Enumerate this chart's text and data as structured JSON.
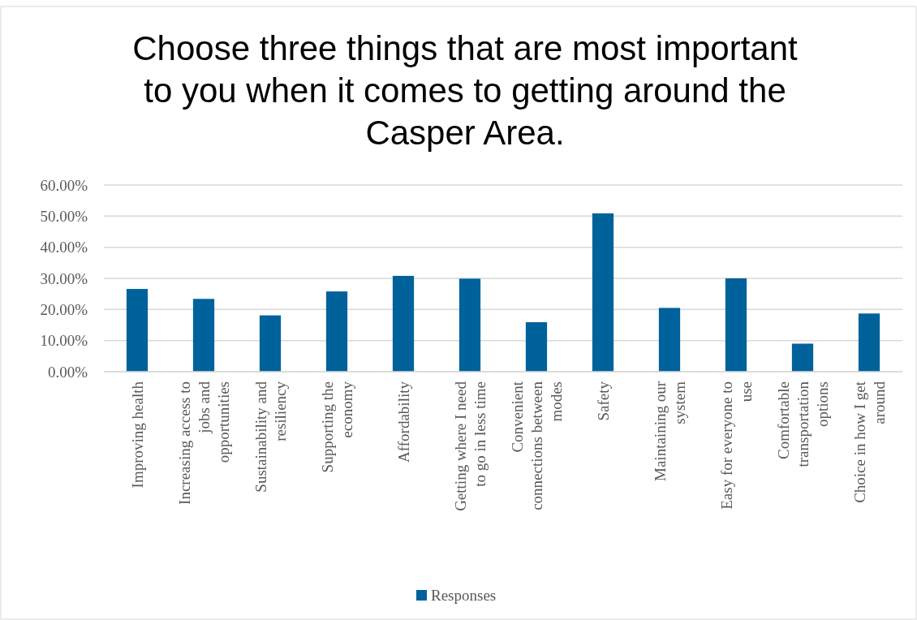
{
  "chart_data": {
    "type": "bar",
    "title": "Choose three things that are most important to you when it comes to getting around the Casper Area.",
    "categories": [
      "Improving health",
      "Increasing access to jobs and opportunities",
      "Sustainability and resiliency",
      "Supporting the economy",
      "Affordability",
      "Getting where I need to go in less time",
      "Convenient connections between modes",
      "Safety",
      "Maintaining our system",
      "Easy for everyone to use",
      "Comfortable transportation options",
      "Choice in how I get around"
    ],
    "series": [
      {
        "name": "Responses",
        "color": "#00629b",
        "values": [
          26.6,
          23.4,
          18.1,
          25.8,
          30.8,
          29.9,
          15.9,
          50.9,
          20.5,
          30.0,
          9.0,
          18.7
        ]
      }
    ],
    "ylim": [
      0,
      60
    ],
    "yticks": [
      {
        "value": 0,
        "label": "0.00%"
      },
      {
        "value": 10,
        "label": "10.00%"
      },
      {
        "value": 20,
        "label": "20.00%"
      },
      {
        "value": 30,
        "label": "30.00%"
      },
      {
        "value": 40,
        "label": "40.00%"
      },
      {
        "value": 50,
        "label": "50.00%"
      },
      {
        "value": 60,
        "label": "60.00%"
      }
    ],
    "grid": "y",
    "legend": "bottom"
  }
}
